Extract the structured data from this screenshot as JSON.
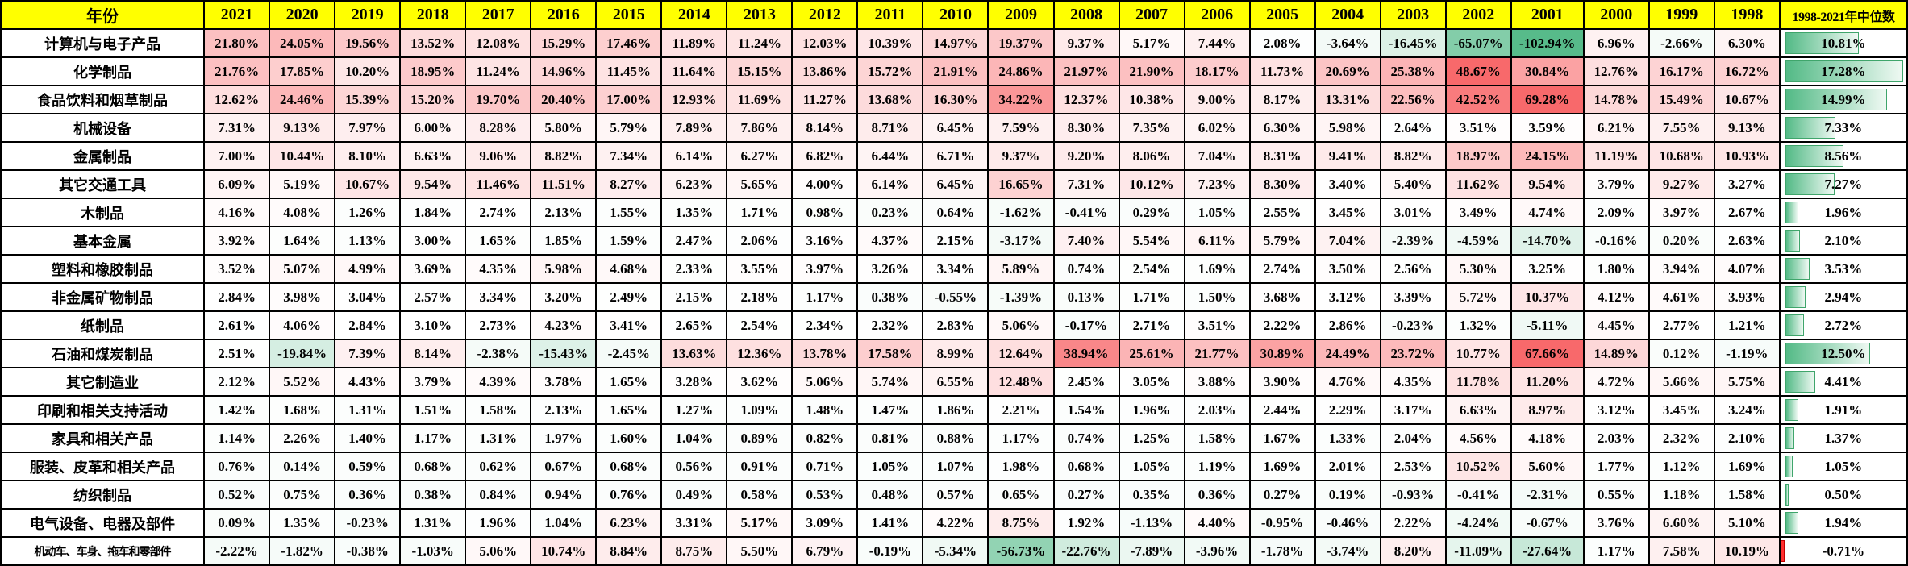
{
  "chart_data": {
    "type": "heatmap",
    "corner_label": "年份",
    "median_column_label": "1998-2021年中位数",
    "columns": [
      "2021",
      "2020",
      "2019",
      "2018",
      "2017",
      "2016",
      "2015",
      "2014",
      "2013",
      "2012",
      "2011",
      "2010",
      "2009",
      "2008",
      "2007",
      "2006",
      "2005",
      "2004",
      "2003",
      "2002",
      "2001",
      "2000",
      "1999",
      "1998"
    ],
    "value_format": "percent_2dp",
    "bar_max": 17.28,
    "colors": {
      "header_bg": "#FFFF00",
      "positive_max": "#F8696B",
      "negative_max": "#57BB8A",
      "neutral": "#FFFFFF",
      "bar_fill": "#53BA86",
      "bar_border": "#3FA56B",
      "negative_bar": "#FF2E2E",
      "grid": "#000000"
    },
    "rows": [
      {
        "label": "计算机与电子产品",
        "values": [
          21.8,
          24.05,
          19.56,
          13.52,
          12.08,
          15.29,
          17.46,
          11.89,
          11.24,
          12.03,
          10.39,
          14.97,
          19.37,
          9.37,
          5.17,
          7.44,
          2.08,
          -3.64,
          -16.45,
          -65.07,
          -102.94,
          6.96,
          -2.66,
          6.3
        ],
        "median": 10.81
      },
      {
        "label": "化学制品",
        "values": [
          21.76,
          17.85,
          10.2,
          18.95,
          11.24,
          14.96,
          11.45,
          11.64,
          15.15,
          13.86,
          15.72,
          21.91,
          24.86,
          21.97,
          21.9,
          18.17,
          11.73,
          20.69,
          25.38,
          48.67,
          30.84,
          12.76,
          16.17,
          16.72
        ],
        "median": 17.28
      },
      {
        "label": "食品饮料和烟草制品",
        "values": [
          12.62,
          24.46,
          15.39,
          15.2,
          19.7,
          20.4,
          17.0,
          12.93,
          11.69,
          11.27,
          13.68,
          16.3,
          34.22,
          12.37,
          10.38,
          9.0,
          8.17,
          13.31,
          22.56,
          42.52,
          69.28,
          14.78,
          15.49,
          10.67
        ],
        "median": 14.99
      },
      {
        "label": "机械设备",
        "values": [
          7.31,
          9.13,
          7.97,
          6.0,
          8.28,
          5.8,
          5.79,
          7.89,
          7.86,
          8.14,
          8.71,
          6.45,
          7.59,
          8.3,
          7.35,
          6.02,
          6.3,
          5.98,
          2.64,
          3.51,
          3.59,
          6.21,
          7.55,
          9.13
        ],
        "median": 7.33
      },
      {
        "label": "金属制品",
        "values": [
          7.0,
          10.44,
          8.1,
          6.63,
          9.06,
          8.82,
          7.34,
          6.14,
          6.27,
          6.82,
          6.44,
          6.71,
          9.37,
          9.2,
          8.06,
          7.04,
          8.31,
          9.41,
          8.82,
          18.97,
          24.15,
          11.19,
          10.68,
          10.93
        ],
        "median": 8.56
      },
      {
        "label": "其它交通工具",
        "values": [
          6.09,
          5.19,
          10.67,
          9.54,
          11.46,
          11.51,
          8.27,
          6.23,
          5.65,
          4.0,
          6.14,
          6.45,
          16.65,
          7.31,
          10.12,
          7.23,
          8.3,
          3.4,
          5.4,
          11.62,
          9.54,
          3.79,
          9.27,
          3.27
        ],
        "median": 7.27
      },
      {
        "label": "木制品",
        "values": [
          4.16,
          4.08,
          1.26,
          1.84,
          2.74,
          2.13,
          1.55,
          1.35,
          1.71,
          0.98,
          0.23,
          0.64,
          -1.62,
          -0.41,
          0.29,
          1.05,
          2.55,
          3.45,
          3.01,
          3.49,
          4.74,
          2.09,
          3.97,
          2.67
        ],
        "median": 1.96
      },
      {
        "label": "基本金属",
        "values": [
          3.92,
          1.64,
          1.13,
          3.0,
          1.65,
          1.85,
          1.59,
          2.47,
          2.06,
          3.16,
          4.37,
          2.15,
          -3.17,
          7.4,
          5.54,
          6.11,
          5.79,
          7.04,
          -2.39,
          -4.59,
          -14.7,
          -0.16,
          0.2,
          2.63
        ],
        "median": 2.1
      },
      {
        "label": "塑料和橡胶制品",
        "values": [
          3.52,
          5.07,
          4.99,
          3.69,
          4.35,
          5.98,
          4.68,
          2.33,
          3.55,
          3.97,
          3.26,
          3.34,
          5.89,
          0.74,
          2.54,
          1.69,
          2.74,
          3.5,
          2.56,
          5.3,
          3.25,
          1.8,
          3.94,
          4.07
        ],
        "median": 3.53
      },
      {
        "label": "非金属矿物制品",
        "values": [
          2.84,
          3.98,
          3.04,
          2.57,
          3.34,
          3.2,
          2.49,
          2.15,
          2.18,
          1.17,
          0.38,
          -0.55,
          -1.39,
          0.13,
          1.71,
          1.5,
          3.68,
          3.12,
          3.39,
          5.72,
          10.37,
          4.12,
          4.61,
          3.93
        ],
        "median": 2.94
      },
      {
        "label": "纸制品",
        "values": [
          2.61,
          4.06,
          2.84,
          3.1,
          2.73,
          4.23,
          3.41,
          2.65,
          2.54,
          2.34,
          2.32,
          2.83,
          5.06,
          -0.17,
          2.71,
          3.51,
          2.22,
          2.86,
          -0.23,
          1.32,
          -5.11,
          4.45,
          2.77,
          1.21
        ],
        "median": 2.72
      },
      {
        "label": "石油和煤炭制品",
        "values": [
          2.51,
          -19.84,
          7.39,
          8.14,
          -2.38,
          -15.43,
          -2.45,
          13.63,
          12.36,
          13.78,
          17.58,
          8.99,
          12.64,
          38.94,
          25.61,
          21.77,
          30.89,
          24.49,
          23.72,
          10.77,
          67.66,
          14.89,
          0.12,
          -1.19
        ],
        "median": 12.5
      },
      {
        "label": "其它制造业",
        "values": [
          2.12,
          5.52,
          4.43,
          3.79,
          4.39,
          3.78,
          1.65,
          3.28,
          3.62,
          5.06,
          5.74,
          6.55,
          12.48,
          2.45,
          3.05,
          3.88,
          3.9,
          4.76,
          4.35,
          11.78,
          11.2,
          4.72,
          5.66,
          5.75
        ],
        "median": 4.41
      },
      {
        "label": "印刷和相关支持活动",
        "values": [
          1.42,
          1.68,
          1.31,
          1.51,
          1.58,
          2.13,
          1.65,
          1.27,
          1.09,
          1.48,
          1.47,
          1.86,
          2.21,
          1.54,
          1.96,
          2.03,
          2.44,
          2.29,
          3.17,
          6.63,
          8.97,
          3.12,
          3.45,
          3.24
        ],
        "median": 1.91
      },
      {
        "label": "家具和相关产品",
        "values": [
          1.14,
          2.26,
          1.4,
          1.17,
          1.31,
          1.97,
          1.6,
          1.04,
          0.89,
          0.82,
          0.81,
          0.88,
          1.17,
          0.74,
          1.25,
          1.58,
          1.67,
          1.33,
          2.04,
          4.56,
          4.18,
          2.03,
          2.32,
          2.1
        ],
        "median": 1.37
      },
      {
        "label": "服装、皮革和相关产品",
        "values": [
          0.76,
          0.14,
          0.59,
          0.68,
          0.62,
          0.67,
          0.68,
          0.56,
          0.91,
          0.71,
          1.05,
          1.07,
          1.98,
          0.68,
          1.05,
          1.19,
          1.69,
          2.01,
          2.53,
          10.52,
          5.6,
          1.77,
          1.12,
          1.69
        ],
        "median": 1.05
      },
      {
        "label": "纺织制品",
        "values": [
          0.52,
          0.75,
          0.36,
          0.38,
          0.84,
          0.94,
          0.76,
          0.49,
          0.58,
          0.53,
          0.48,
          0.57,
          0.65,
          0.27,
          0.35,
          0.36,
          0.27,
          0.19,
          -0.93,
          -0.41,
          -2.31,
          0.55,
          1.18,
          1.58
        ],
        "median": 0.5
      },
      {
        "label": "电气设备、电器及部件",
        "values": [
          0.09,
          1.35,
          -0.23,
          1.31,
          1.96,
          1.04,
          6.23,
          3.31,
          5.17,
          3.09,
          1.41,
          4.22,
          8.75,
          1.92,
          -1.13,
          4.4,
          -0.95,
          -0.46,
          2.22,
          -4.24,
          -0.67,
          3.76,
          6.6,
          5.1
        ],
        "median": 1.94
      },
      {
        "label": "机动车、车身、拖车和零部件",
        "values": [
          -2.22,
          -1.82,
          -0.38,
          -1.03,
          5.06,
          10.74,
          8.84,
          8.75,
          5.5,
          6.79,
          -0.19,
          -5.34,
          -56.73,
          -22.76,
          -7.89,
          -3.96,
          -1.78,
          -3.74,
          8.2,
          -11.09,
          -27.64,
          1.17,
          7.58,
          10.19
        ],
        "median": -0.71
      }
    ]
  }
}
